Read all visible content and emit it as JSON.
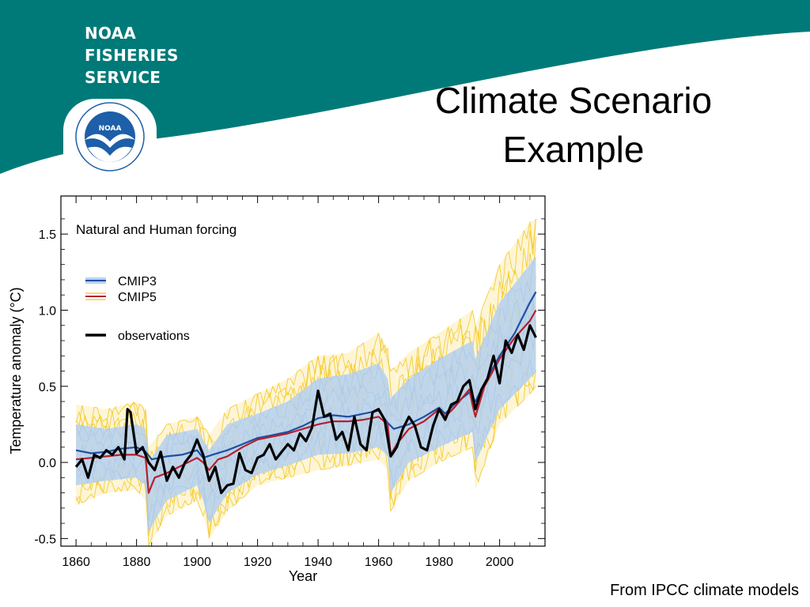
{
  "organization": {
    "lines": [
      "NOAA",
      "FISHERIES",
      "SERVICE"
    ],
    "logo_text": "NOAA"
  },
  "slide": {
    "title_lines": [
      "Climate Scenario",
      "Example"
    ],
    "footer": "From IPCC climate models"
  },
  "colors": {
    "banner_teal": "#007a78",
    "noaa_blue": "#1d5fa8",
    "cmip3": "#1f4fa3",
    "cmip5": "#b5202e",
    "ensemble_cmip3_fill": "#b9d3ee",
    "ensemble_cmip5": "#f5c518",
    "observations": "#000000"
  },
  "chart_data": {
    "type": "line",
    "annotation": "Natural and Human forcing",
    "xlabel": "Year",
    "ylabel": "Temperature anomaly (°C)",
    "xlim": [
      1855,
      2015
    ],
    "ylim": [
      -0.55,
      1.75
    ],
    "xticks": [
      1860,
      1880,
      1900,
      1920,
      1940,
      1960,
      1980,
      2000
    ],
    "yticks": [
      -0.5,
      0.0,
      0.5,
      1.0,
      1.5
    ],
    "ytick_labels": [
      "-0.5",
      "0.0",
      "0.5",
      "1.0",
      "1.5"
    ],
    "grid": false,
    "legend": {
      "placement": "upper-left",
      "entries": [
        {
          "label": "CMIP3",
          "style": "thin-blue-band",
          "color": "#1f4fa3"
        },
        {
          "label": "CMIP5",
          "style": "thin-yellow-red",
          "color": "#b5202e"
        },
        {
          "label": "observations",
          "style": "thick-black",
          "color": "#000000"
        }
      ]
    },
    "series": [
      {
        "name": "CMIP3",
        "x": [
          1860,
          1865,
          1870,
          1875,
          1880,
          1883,
          1885,
          1890,
          1895,
          1900,
          1902,
          1905,
          1910,
          1915,
          1920,
          1925,
          1930,
          1935,
          1940,
          1945,
          1950,
          1955,
          1960,
          1963,
          1965,
          1970,
          1975,
          1980,
          1982,
          1985,
          1990,
          1992,
          1995,
          2000,
          2005,
          2010,
          2012
        ],
        "y": [
          0.08,
          0.06,
          0.07,
          0.09,
          0.1,
          0.07,
          0.02,
          0.04,
          0.05,
          0.08,
          0.03,
          0.05,
          0.08,
          0.12,
          0.16,
          0.18,
          0.2,
          0.24,
          0.29,
          0.31,
          0.3,
          0.32,
          0.34,
          0.26,
          0.22,
          0.25,
          0.3,
          0.36,
          0.32,
          0.38,
          0.46,
          0.4,
          0.52,
          0.7,
          0.85,
          1.05,
          1.12
        ]
      },
      {
        "name": "CMIP5",
        "x": [
          1860,
          1865,
          1870,
          1875,
          1880,
          1883,
          1884,
          1886,
          1890,
          1895,
          1900,
          1902,
          1904,
          1907,
          1910,
          1915,
          1920,
          1925,
          1930,
          1935,
          1940,
          1945,
          1950,
          1955,
          1960,
          1963,
          1964,
          1966,
          1970,
          1975,
          1980,
          1982,
          1985,
          1990,
          1991,
          1992,
          1995,
          2000,
          2005,
          2010,
          2012
        ],
        "y": [
          0.02,
          0.03,
          0.04,
          0.05,
          0.05,
          0.03,
          -0.2,
          -0.1,
          -0.07,
          -0.02,
          0.03,
          0.0,
          -0.05,
          0.02,
          0.04,
          0.1,
          0.15,
          0.17,
          0.19,
          0.22,
          0.25,
          0.27,
          0.27,
          0.28,
          0.3,
          0.25,
          0.05,
          0.12,
          0.22,
          0.27,
          0.35,
          0.3,
          0.36,
          0.48,
          0.38,
          0.3,
          0.5,
          0.68,
          0.82,
          0.93,
          1.0
        ]
      },
      {
        "name": "observations",
        "x": [
          1860,
          1862,
          1864,
          1866,
          1868,
          1870,
          1872,
          1874,
          1876,
          1877,
          1878,
          1880,
          1882,
          1884,
          1886,
          1888,
          1890,
          1892,
          1894,
          1896,
          1898,
          1900,
          1902,
          1904,
          1906,
          1908,
          1910,
          1912,
          1914,
          1916,
          1918,
          1920,
          1922,
          1924,
          1926,
          1928,
          1930,
          1932,
          1934,
          1936,
          1938,
          1940,
          1942,
          1944,
          1946,
          1948,
          1950,
          1952,
          1954,
          1956,
          1958,
          1960,
          1962,
          1964,
          1966,
          1968,
          1970,
          1972,
          1974,
          1976,
          1978,
          1980,
          1982,
          1984,
          1986,
          1988,
          1990,
          1992,
          1994,
          1996,
          1998,
          2000,
          2002,
          2004,
          2006,
          2008,
          2010,
          2012
        ],
        "y": [
          -0.03,
          0.02,
          -0.1,
          0.05,
          0.03,
          0.08,
          0.05,
          0.1,
          0.02,
          0.35,
          0.33,
          0.06,
          0.1,
          0.0,
          -0.05,
          0.07,
          -0.12,
          -0.03,
          -0.1,
          0.0,
          0.05,
          0.15,
          0.05,
          -0.12,
          -0.03,
          -0.2,
          -0.15,
          -0.14,
          0.06,
          -0.05,
          -0.07,
          0.03,
          0.05,
          0.12,
          0.02,
          0.07,
          0.12,
          0.08,
          0.19,
          0.14,
          0.23,
          0.47,
          0.3,
          0.32,
          0.15,
          0.2,
          0.08,
          0.3,
          0.12,
          0.08,
          0.33,
          0.35,
          0.28,
          0.04,
          0.1,
          0.22,
          0.3,
          0.24,
          0.1,
          0.08,
          0.24,
          0.35,
          0.28,
          0.38,
          0.4,
          0.5,
          0.54,
          0.35,
          0.48,
          0.55,
          0.7,
          0.52,
          0.8,
          0.72,
          0.84,
          0.74,
          0.9,
          0.82
        ]
      }
    ],
    "ensemble_ranges": [
      {
        "model": "CMIP5",
        "x": [
          1860,
          1870,
          1880,
          1883,
          1884,
          1890,
          1900,
          1902,
          1904,
          1910,
          1920,
          1930,
          1940,
          1950,
          1960,
          1963,
          1964,
          1970,
          1980,
          1991,
          1992,
          2000,
          2010,
          2012
        ],
        "low": [
          -0.28,
          -0.2,
          -0.18,
          -0.25,
          -0.55,
          -0.35,
          -0.25,
          -0.35,
          -0.5,
          -0.32,
          -0.15,
          -0.1,
          -0.05,
          -0.02,
          0.02,
          -0.05,
          -0.32,
          -0.12,
          0.0,
          0.1,
          -0.18,
          0.25,
          0.45,
          0.5
        ],
        "high": [
          0.38,
          0.35,
          0.4,
          0.35,
          0.1,
          0.25,
          0.3,
          0.25,
          0.18,
          0.35,
          0.45,
          0.55,
          0.7,
          0.72,
          0.85,
          0.75,
          0.6,
          0.72,
          0.85,
          1.0,
          0.9,
          1.3,
          1.58,
          1.6
        ]
      },
      {
        "model": "CMIP3",
        "x": [
          1860,
          1870,
          1880,
          1883,
          1884,
          1890,
          1900,
          1902,
          1904,
          1910,
          1920,
          1930,
          1940,
          1950,
          1960,
          1963,
          1964,
          1970,
          1980,
          1991,
          1992,
          2000,
          2010,
          2012
        ],
        "low": [
          -0.15,
          -0.12,
          -0.1,
          -0.15,
          -0.45,
          -0.25,
          -0.15,
          -0.25,
          -0.4,
          -0.2,
          -0.08,
          -0.02,
          0.05,
          0.06,
          0.1,
          0.04,
          -0.2,
          0.0,
          0.1,
          0.2,
          0.0,
          0.35,
          0.55,
          0.6
        ],
        "high": [
          0.25,
          0.22,
          0.25,
          0.22,
          0.0,
          0.18,
          0.22,
          0.15,
          0.08,
          0.25,
          0.32,
          0.4,
          0.55,
          0.58,
          0.65,
          0.55,
          0.42,
          0.55,
          0.68,
          0.8,
          0.68,
          1.05,
          1.3,
          1.35
        ]
      }
    ]
  }
}
